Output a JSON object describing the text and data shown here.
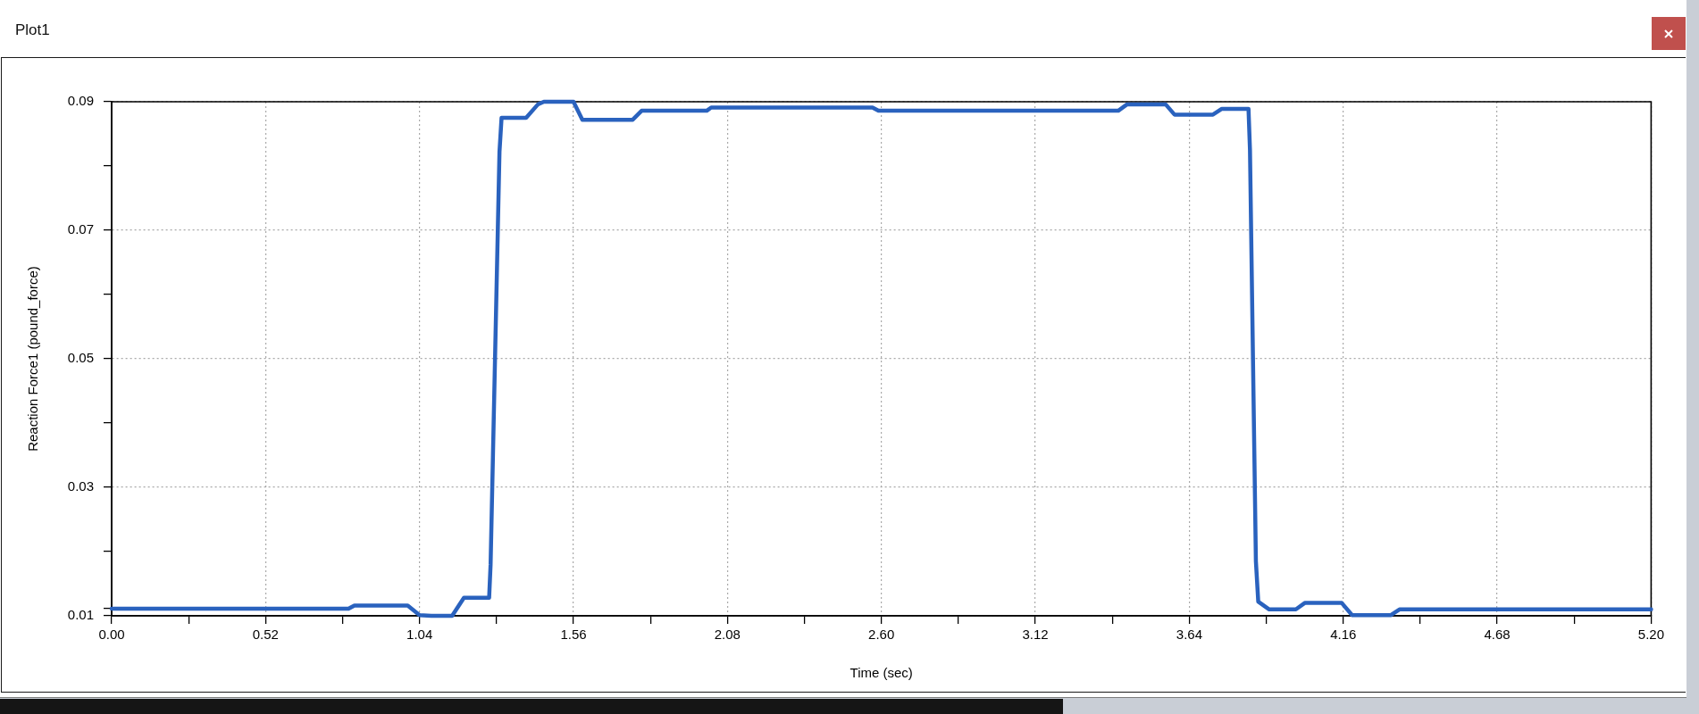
{
  "chart_data": {
    "type": "line",
    "title": "Plot1",
    "xlabel": "Time (sec)",
    "ylabel": "Reaction Force1 (pound_force)",
    "x": [
      0,
      0.8,
      0.82,
      1.0,
      1.04,
      1.08,
      1.15,
      1.19,
      1.275,
      1.28,
      1.31,
      1.317,
      1.4,
      1.44,
      1.46,
      1.56,
      1.59,
      1.76,
      1.79,
      2.01,
      2.025,
      2.57,
      2.59,
      3.4,
      3.43,
      3.56,
      3.59,
      3.72,
      3.75,
      3.84,
      3.845,
      3.865,
      3.873,
      3.91,
      4.0,
      4.03,
      4.155,
      4.19,
      4.32,
      4.35,
      5.2
    ],
    "values": [
      0.0111,
      0.0111,
      0.0116,
      0.0116,
      0.0101,
      0.01,
      0.01,
      0.0128,
      0.0128,
      0.018,
      0.0822,
      0.0875,
      0.0875,
      0.0896,
      0.09,
      0.09,
      0.0872,
      0.0872,
      0.0886,
      0.0886,
      0.0891,
      0.0891,
      0.0886,
      0.0886,
      0.0896,
      0.0896,
      0.088,
      0.088,
      0.0889,
      0.0889,
      0.0825,
      0.0185,
      0.0122,
      0.011,
      0.011,
      0.012,
      0.012,
      0.0101,
      0.0101,
      0.011,
      0.011
    ],
    "color": "#2a62be",
    "marker": "none",
    "line_style": "solid",
    "grid": true,
    "xlim": [
      0,
      5.2
    ],
    "ylim": [
      0.01,
      0.09
    ],
    "xticks": [
      {
        "value": 0,
        "label": "0.00"
      },
      {
        "value": 0.26,
        "label": null
      },
      0.52,
      {
        "value": 0.78,
        "label": null
      },
      1.04,
      {
        "value": 1.3,
        "label": null
      },
      1.56,
      {
        "value": 1.82,
        "label": null
      },
      2.08,
      {
        "value": 2.34,
        "label": null
      },
      {
        "value": 2.6,
        "label": "2.60"
      },
      {
        "value": 2.86,
        "label": null
      },
      3.12,
      {
        "value": 3.38,
        "label": null
      },
      3.64,
      {
        "value": 3.9,
        "label": null
      },
      4.16,
      {
        "value": 4.42,
        "label": null
      },
      4.68,
      {
        "value": 4.94,
        "label": null
      },
      {
        "value": 5.2,
        "label": "5.20"
      }
    ],
    "yticks": [
      0.01,
      {
        "value": 0.0111,
        "label": null
      },
      {
        "value": 0.02,
        "label": null
      },
      0.03,
      {
        "value": 0.04,
        "label": null
      },
      0.05,
      {
        "value": 0.06,
        "label": null
      },
      0.07,
      {
        "value": 0.08,
        "label": null
      },
      0.09
    ]
  }
}
